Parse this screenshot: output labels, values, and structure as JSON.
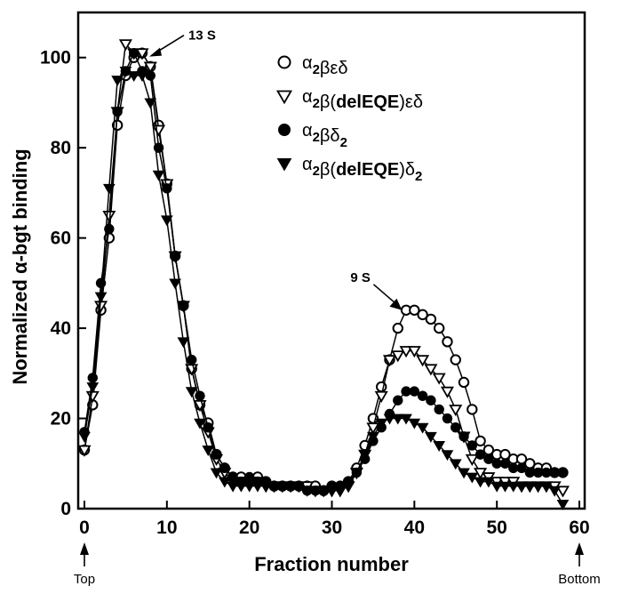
{
  "chart_data": {
    "type": "line",
    "title": "",
    "xlabel": "Fraction number",
    "ylabel": "Normalized α-bgt binding",
    "xlim": [
      0,
      60
    ],
    "ylim": [
      0,
      110
    ],
    "x_ticks": [
      "0",
      "10",
      "20",
      "30",
      "40",
      "50",
      "60"
    ],
    "y_ticks": [
      "0",
      "20",
      "40",
      "60",
      "80",
      "100"
    ],
    "grid": false,
    "legend_position": "top-right",
    "legend": [
      {
        "prefix": "α",
        "sub1": "2",
        "mid": "β",
        "bold": "",
        "open": "",
        "close": "",
        "tail": "εδ",
        "sub2": "",
        "marker": "circle-open"
      },
      {
        "prefix": "α",
        "sub1": "2",
        "mid": "β",
        "bold": "delEQE",
        "open": "(",
        "close": ")",
        "tail": "εδ",
        "sub2": "",
        "marker": "triangle-down-open"
      },
      {
        "prefix": "α",
        "sub1": "2",
        "mid": "β",
        "bold": "",
        "open": "",
        "close": "",
        "tail": "δ",
        "sub2": "2",
        "marker": "circle-filled"
      },
      {
        "prefix": "α",
        "sub1": "2",
        "mid": "β",
        "bold": "delEQE",
        "open": "(",
        "close": ")",
        "tail": "δ",
        "sub2": "2",
        "marker": "triangle-down-filled"
      }
    ],
    "annotations": [
      {
        "text": "13 S",
        "x": 7,
        "y": 101
      },
      {
        "text": "9 S",
        "x": 38.5,
        "y": 44
      }
    ],
    "endpoint_labels": {
      "left": "Top",
      "right": "Bottom"
    },
    "series": [
      {
        "marker": "circle-open",
        "x": [
          0,
          1,
          2,
          3,
          4,
          5,
          6,
          7,
          8,
          9,
          10,
          11,
          12,
          13,
          14,
          15,
          16,
          17,
          18,
          19,
          20,
          21,
          22,
          23,
          24,
          25,
          26,
          27,
          28,
          29,
          30,
          31,
          32,
          33,
          34,
          35,
          36,
          37,
          38,
          39,
          40,
          41,
          42,
          43,
          44,
          45,
          46,
          47,
          48,
          49,
          50,
          51,
          52,
          53,
          54,
          55,
          56,
          57,
          58
        ],
        "y": [
          13,
          23,
          44,
          60,
          85,
          96,
          100,
          101,
          98,
          85,
          72,
          56,
          45,
          31,
          23,
          19,
          12,
          9,
          7,
          7,
          6,
          7,
          6,
          5,
          5,
          5,
          5,
          5,
          5,
          4,
          5,
          5,
          6,
          9,
          14,
          20,
          27,
          33,
          40,
          44,
          44,
          43,
          42,
          40,
          37,
          33,
          28,
          22,
          15,
          13,
          12,
          12,
          11,
          11,
          10,
          9,
          9,
          8,
          8
        ]
      },
      {
        "marker": "triangle-down-open",
        "x": [
          0,
          1,
          2,
          3,
          4,
          5,
          6,
          7,
          8,
          9,
          10,
          11,
          12,
          13,
          14,
          15,
          16,
          17,
          18,
          19,
          20,
          21,
          22,
          23,
          24,
          25,
          26,
          27,
          28,
          29,
          30,
          31,
          32,
          33,
          34,
          35,
          36,
          37,
          38,
          39,
          40,
          41,
          42,
          43,
          44,
          45,
          46,
          47,
          48,
          49,
          50,
          51,
          52,
          53,
          54,
          55,
          56,
          57,
          58
        ],
        "y": [
          13,
          25,
          45,
          65,
          88,
          103,
          101,
          101,
          98,
          84,
          72,
          56,
          45,
          31,
          23,
          17,
          11,
          8,
          6,
          6,
          6,
          6,
          5,
          5,
          5,
          5,
          5,
          5,
          4,
          4,
          4,
          4,
          5,
          8,
          12,
          18,
          25,
          33,
          34,
          35,
          35,
          33,
          31,
          29,
          26,
          22,
          16,
          11,
          8,
          7,
          6,
          6,
          6,
          5,
          5,
          5,
          5,
          5,
          4
        ]
      },
      {
        "marker": "circle-filled",
        "x": [
          0,
          1,
          2,
          3,
          4,
          5,
          6,
          7,
          8,
          9,
          10,
          11,
          12,
          13,
          14,
          15,
          16,
          17,
          18,
          19,
          20,
          21,
          22,
          23,
          24,
          25,
          26,
          27,
          28,
          29,
          30,
          31,
          32,
          33,
          34,
          35,
          36,
          37,
          38,
          39,
          40,
          41,
          42,
          43,
          44,
          45,
          46,
          47,
          48,
          49,
          50,
          51,
          52,
          53,
          54,
          55,
          56,
          57,
          58
        ],
        "y": [
          17,
          29,
          50,
          62,
          88,
          97,
          101,
          97,
          96,
          80,
          71,
          56,
          45,
          33,
          25,
          18,
          12,
          9,
          7,
          6,
          7,
          6,
          6,
          5,
          5,
          5,
          5,
          4,
          4,
          4,
          5,
          5,
          6,
          8,
          11,
          15,
          18,
          21,
          24,
          26,
          26,
          25,
          24,
          22,
          20,
          18,
          16,
          14,
          12,
          11,
          10,
          10,
          9,
          9,
          8,
          8,
          8,
          8,
          8
        ]
      },
      {
        "marker": "triangle-down-filled",
        "x": [
          0,
          1,
          2,
          3,
          4,
          5,
          6,
          7,
          8,
          9,
          10,
          11,
          12,
          13,
          14,
          15,
          16,
          17,
          18,
          19,
          20,
          21,
          22,
          23,
          24,
          25,
          26,
          27,
          28,
          29,
          30,
          31,
          32,
          33,
          34,
          35,
          36,
          37,
          38,
          39,
          40,
          41,
          42,
          43,
          44,
          45,
          46,
          47,
          48,
          49,
          50,
          51,
          52,
          53,
          54,
          55,
          56,
          57,
          58
        ],
        "y": [
          16,
          27,
          47,
          71,
          95,
          97,
          96,
          96,
          90,
          74,
          64,
          50,
          37,
          26,
          19,
          13,
          8,
          6,
          5,
          5,
          5,
          5,
          5,
          5,
          5,
          5,
          5,
          4,
          4,
          4,
          4,
          4,
          5,
          8,
          12,
          16,
          19,
          20,
          20,
          20,
          19,
          18,
          16,
          14,
          12,
          10,
          8,
          7,
          6,
          6,
          5,
          5,
          5,
          5,
          5,
          5,
          5,
          4,
          1
        ]
      }
    ]
  }
}
